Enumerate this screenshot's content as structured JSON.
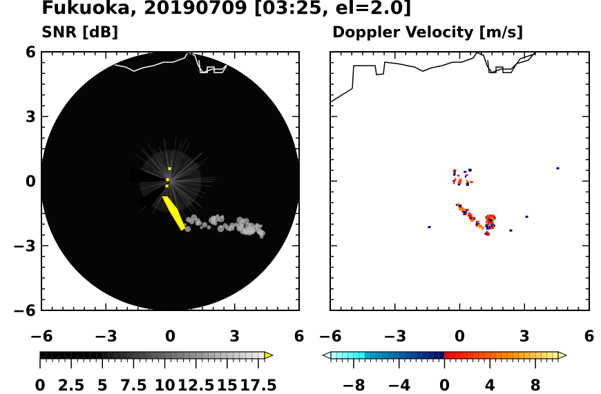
{
  "title": "Fukuoka, 20190709 [03:25, el=2.0]",
  "chart_data": [
    {
      "type": "heatmap",
      "title": "SNR [dB]",
      "xlim": [
        -6,
        6
      ],
      "ylim": [
        -6,
        6
      ],
      "xticks": [
        "-6",
        "-3",
        "0",
        "3",
        "6"
      ],
      "yticks": [
        "6",
        "3",
        "0",
        "-3",
        "-6"
      ],
      "colorbar": {
        "range": [
          0,
          18
        ],
        "step": 0.5,
        "extend": "max",
        "extend_color": "#ffff00",
        "ticks": [
          "0",
          "2.5",
          "5",
          "7.5",
          "10",
          "12.5",
          "15",
          "17.5"
        ],
        "tick_values": [
          0,
          2.5,
          5,
          7.5,
          10,
          12.5,
          15,
          17.5
        ]
      }
    },
    {
      "type": "heatmap",
      "title": "Doppler Velocity [m/s]",
      "xlim": [
        -6,
        6
      ],
      "ylim": [
        -6,
        6
      ],
      "xticks": [
        "-6",
        "-3",
        "0",
        "3",
        "6"
      ],
      "yticks": [
        "6",
        "3",
        "0",
        "-3",
        "-6"
      ],
      "colorbar": {
        "range": [
          -10,
          10
        ],
        "step": 0.5,
        "extend": "both",
        "ticks": [
          "−8",
          "−4",
          "0",
          "4",
          "8"
        ],
        "tick_values": [
          -8,
          -4,
          0,
          4,
          8
        ]
      }
    }
  ]
}
